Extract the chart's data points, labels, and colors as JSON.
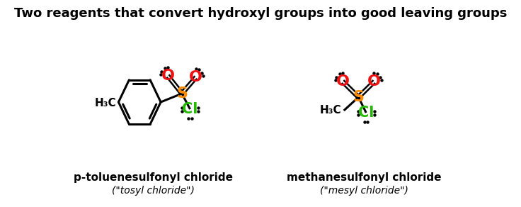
{
  "title": "Two reagents that convert hydroxyl groups into good leaving groups",
  "title_fontsize": 13,
  "title_fontweight": "bold",
  "bg_color": "#ffffff",
  "label1_bold": "p-toluenesulfonyl chloride",
  "label1_italic": "(\"tosyl chloride\")",
  "label2_bold": "methanesulfonyl chloride",
  "label2_italic": "(\"mesyl chloride\")",
  "color_O": "#ee1111",
  "color_S": "#ff8c00",
  "color_Cl": "#22bb00",
  "color_black": "#000000"
}
